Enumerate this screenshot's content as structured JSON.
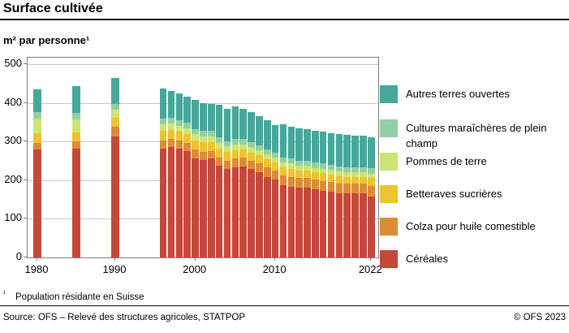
{
  "header": {
    "title": "Surface cultivée",
    "subtitle": "m² par personne¹"
  },
  "footnote": {
    "marker": "¹",
    "text": "Population résidante en Suisse"
  },
  "footer": {
    "source": "Source: OFS – Relevé des structures agricoles, STATPOP",
    "copyright": "© OFS 2023"
  },
  "colors": {
    "grid": "#c9c9c9",
    "frame": "#7f7f7f",
    "rule": "#000000"
  },
  "chart_data": {
    "type": "bar",
    "stacked": true,
    "title": "Surface cultivée",
    "ylabel": "m² par personne¹",
    "xlabel": "",
    "ylim": [
      0,
      500
    ],
    "yticks": [
      0,
      100,
      200,
      300,
      400,
      500
    ],
    "xtick_labels": [
      1980,
      1990,
      2000,
      2010,
      2022
    ],
    "grid": true,
    "legend_position": "right",
    "legend_order": "top-to-bottom is reverse of stacking (top segment first)",
    "categories": [
      1980,
      1985,
      1990,
      1996,
      1997,
      1998,
      1999,
      2000,
      2001,
      2002,
      2003,
      2004,
      2005,
      2006,
      2007,
      2008,
      2009,
      2010,
      2011,
      2012,
      2013,
      2014,
      2015,
      2016,
      2017,
      2018,
      2019,
      2020,
      2021,
      2022
    ],
    "series": [
      {
        "name": "Céréales",
        "color": "#C5483B",
        "values": [
          280,
          281,
          313,
          281,
          286,
          281,
          276,
          257,
          253,
          256,
          238,
          230,
          234,
          236,
          229,
          221,
          209,
          201,
          187,
          183,
          180,
          181,
          176,
          173,
          170,
          166,
          166,
          167,
          166,
          158
        ]
      },
      {
        "name": "Colza pour huile comestible",
        "color": "#DC8C35",
        "values": [
          17,
          20,
          25,
          21,
          20,
          21,
          21,
          22,
          21,
          20,
          21,
          21,
          22,
          22,
          22,
          23,
          24,
          24,
          25,
          26,
          25,
          25,
          25,
          25,
          26,
          26,
          25,
          24,
          25,
          27
        ]
      },
      {
        "name": "Betteraves sucrières",
        "color": "#EDC32F",
        "values": [
          24,
          22,
          23,
          25,
          24,
          23,
          22,
          24,
          24,
          23,
          23,
          22,
          22,
          21,
          21,
          20,
          21,
          20,
          21,
          21,
          20,
          19,
          19,
          20,
          19,
          19,
          18,
          18,
          18,
          20
        ]
      },
      {
        "name": "Pommes de terre",
        "color": "#CCE573",
        "values": [
          38,
          34,
          22,
          18,
          17,
          16,
          16,
          16,
          15,
          15,
          15,
          14,
          14,
          14,
          13,
          13,
          13,
          13,
          13,
          13,
          12,
          12,
          12,
          12,
          12,
          12,
          12,
          12,
          12,
          12
        ]
      },
      {
        "name": "Cultures maraîchères de plein champ",
        "color": "#93CFA4",
        "values": [
          17,
          18,
          14,
          15,
          14,
          14,
          14,
          14,
          14,
          14,
          14,
          14,
          14,
          13,
          13,
          13,
          13,
          13,
          13,
          13,
          13,
          13,
          13,
          13,
          13,
          13,
          13,
          13,
          13,
          14
        ]
      },
      {
        "name": "Autres terres ouvertes",
        "color": "#46A79B",
        "values": [
          58,
          68,
          68,
          77,
          69,
          69,
          66,
          75,
          73,
          70,
          83,
          84,
          84,
          79,
          78,
          76,
          75,
          72,
          85,
          83,
          84,
          82,
          82,
          82,
          81,
          84,
          84,
          82,
          82,
          81
        ]
      }
    ]
  }
}
